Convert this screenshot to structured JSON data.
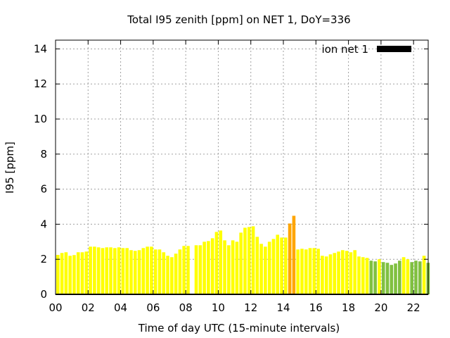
{
  "chart_data": {
    "type": "bar",
    "title": "Total I95 zenith [ppm] on NET 1, DoY=336",
    "xlabel": "Time of day UTC (15-minute intervals)",
    "ylabel": "I95 [ppm]",
    "xlim": [
      0,
      22.9
    ],
    "ylim": [
      0,
      14.5
    ],
    "xticks": [
      0,
      2,
      4,
      6,
      8,
      10,
      12,
      14,
      16,
      18,
      20,
      22
    ],
    "xtick_labels": [
      "00",
      "02",
      "04",
      "06",
      "08",
      "10",
      "12",
      "14",
      "16",
      "18",
      "20",
      "22"
    ],
    "yticks": [
      0,
      2,
      4,
      6,
      8,
      10,
      12,
      14
    ],
    "ytick_labels": [
      "0",
      "2",
      "4",
      "6",
      "8",
      "10",
      "12",
      "14"
    ],
    "grid": true,
    "legend": {
      "position": "top-right",
      "label": "ion net 1",
      "color": "#000000"
    },
    "colors": {
      "green": "#80c040",
      "yellow": "#ffff00",
      "orange": "#ffa500"
    },
    "x": [
      0,
      0.25,
      0.5,
      0.75,
      1,
      1.25,
      1.5,
      1.75,
      2,
      2.25,
      2.5,
      2.75,
      3,
      3.25,
      3.5,
      3.75,
      4,
      4.25,
      4.5,
      4.75,
      5,
      5.25,
      5.5,
      5.75,
      6,
      6.25,
      6.5,
      6.75,
      7,
      7.25,
      7.5,
      7.75,
      8,
      8.5,
      8.75,
      9,
      9.25,
      9.5,
      9.75,
      10,
      10.25,
      10.5,
      10.75,
      11,
      11.25,
      11.5,
      11.75,
      12,
      12.25,
      12.5,
      12.75,
      13,
      13.25,
      13.5,
      13.75,
      14,
      14.25,
      14.5,
      14.75,
      15,
      15.25,
      15.5,
      15.75,
      16,
      16.25,
      16.5,
      16.75,
      17,
      17.25,
      17.5,
      17.75,
      18,
      18.25,
      18.5,
      18.75,
      19,
      19.25,
      19.5,
      19.75,
      20,
      20.25,
      20.5,
      20.75,
      21,
      21.25,
      21.5,
      21.75,
      22,
      22.25,
      22.5,
      22.75
    ],
    "values": [
      2.25,
      2.36,
      2.4,
      2.2,
      2.24,
      2.4,
      2.4,
      2.44,
      2.72,
      2.72,
      2.68,
      2.64,
      2.68,
      2.68,
      2.64,
      2.68,
      2.64,
      2.64,
      2.52,
      2.48,
      2.52,
      2.64,
      2.72,
      2.72,
      2.56,
      2.56,
      2.4,
      2.2,
      2.12,
      2.32,
      2.56,
      2.76,
      2.76,
      2.8,
      2.8,
      3.0,
      3.04,
      3.2,
      3.56,
      3.64,
      3.08,
      2.8,
      3.08,
      3.0,
      3.52,
      3.8,
      3.84,
      3.88,
      3.28,
      2.88,
      2.72,
      3.0,
      3.16,
      3.4,
      3.24,
      3.24,
      4.04,
      4.48,
      2.56,
      2.6,
      2.56,
      2.64,
      2.64,
      2.6,
      2.2,
      2.16,
      2.28,
      2.36,
      2.44,
      2.52,
      2.48,
      2.4,
      2.52,
      2.16,
      2.12,
      2.08,
      1.92,
      1.88,
      2.0,
      1.84,
      1.8,
      1.68,
      1.76,
      1.92,
      2.12,
      2.0,
      1.84,
      1.92,
      1.88,
      2.2,
      1.8
    ],
    "bar_colors": [
      "yellow",
      "yellow",
      "yellow",
      "yellow",
      "yellow",
      "yellow",
      "yellow",
      "yellow",
      "yellow",
      "yellow",
      "yellow",
      "yellow",
      "yellow",
      "yellow",
      "yellow",
      "yellow",
      "yellow",
      "yellow",
      "yellow",
      "yellow",
      "yellow",
      "yellow",
      "yellow",
      "yellow",
      "yellow",
      "yellow",
      "yellow",
      "yellow",
      "yellow",
      "yellow",
      "yellow",
      "yellow",
      "yellow",
      "yellow",
      "yellow",
      "yellow",
      "yellow",
      "yellow",
      "yellow",
      "yellow",
      "yellow",
      "yellow",
      "yellow",
      "yellow",
      "yellow",
      "yellow",
      "yellow",
      "yellow",
      "yellow",
      "yellow",
      "yellow",
      "yellow",
      "yellow",
      "yellow",
      "yellow",
      "yellow",
      "orange",
      "orange",
      "yellow",
      "yellow",
      "yellow",
      "yellow",
      "yellow",
      "yellow",
      "yellow",
      "yellow",
      "yellow",
      "yellow",
      "yellow",
      "yellow",
      "yellow",
      "yellow",
      "yellow",
      "yellow",
      "yellow",
      "yellow",
      "green",
      "green",
      "yellow",
      "green",
      "green",
      "green",
      "green",
      "green",
      "yellow",
      "yellow",
      "green",
      "green",
      "green",
      "yellow",
      "green"
    ]
  }
}
